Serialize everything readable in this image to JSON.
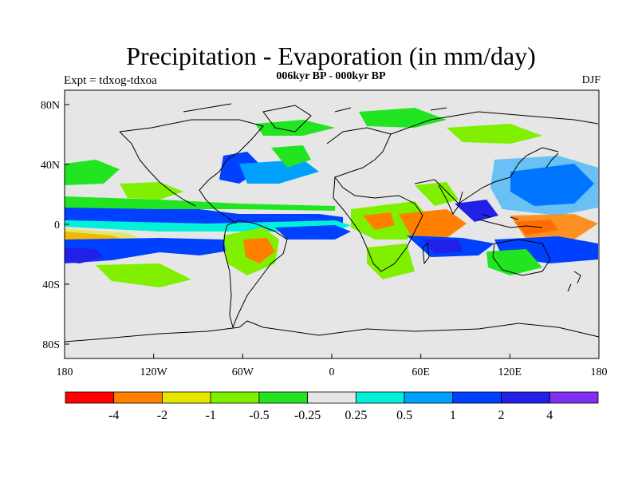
{
  "header": {
    "title": "Precipitation - Evaporation (in mm/day)",
    "subtitle": "006kyr BP - 000kyr BP",
    "left_label": "Expt = tdxog-tdxoa",
    "right_label": "DJF"
  },
  "axes": {
    "y_ticks": [
      "80N",
      "40N",
      "0",
      "40S",
      "80S"
    ],
    "x_ticks": [
      "180",
      "120W",
      "60W",
      "0",
      "60E",
      "120E",
      "180"
    ]
  },
  "colorbar": {
    "colors": [
      "#ff0000",
      "#ff8000",
      "#e6e600",
      "#80f000",
      "#22e522",
      "#e6e6e6",
      "#00f0d8",
      "#00a0ff",
      "#0040ff",
      "#2020e6",
      "#8030f0"
    ],
    "labels": [
      "-4",
      "-2",
      "-1",
      "-0.5",
      "-0.25",
      "0.25",
      "0.5",
      "1",
      "2",
      "4"
    ]
  },
  "colors": {
    "background_land_ocean": "#e6e6e6",
    "coast": "#000000"
  }
}
